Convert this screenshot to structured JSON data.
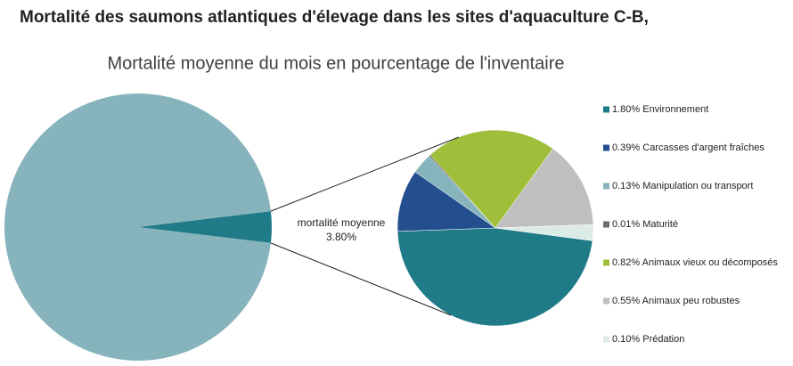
{
  "chart_data": {
    "type": "pie_of_pie",
    "title": "Mortalité des saumons atlantiques d'élevage dans les sites d'aquaculture C-B,",
    "subtitle": "Mortalité moyenne du mois en pourcentage de l'inventaire",
    "main": {
      "categories": [
        "mortalité moyenne",
        null
      ],
      "values": [
        3.8,
        96.2
      ],
      "value_labels": [
        "3.80%",
        null
      ],
      "colors": [
        "#1f7b87",
        "#86b3bc"
      ]
    },
    "categories": [
      "Environnement",
      "Carcasses d'argent fraîches",
      "Manipulation ou transport",
      "Maturité",
      "Animaux vieux ou décomposés",
      "Animaux peu robustes",
      "Prédation"
    ],
    "values": [
      1.8,
      0.39,
      0.13,
      0.01,
      0.82,
      0.55,
      0.1
    ],
    "value_labels": [
      "1.80%",
      "0.39%",
      "0.13%",
      "0.01%",
      "0.82%",
      "0.55%",
      "0.10%"
    ],
    "colors": [
      "#1f7b87",
      "#234f8e",
      "#86b3bc",
      "#6d6d6d",
      "#9fbf3b",
      "#bfbfbf",
      "#dcebe6"
    ],
    "legend": "right"
  }
}
